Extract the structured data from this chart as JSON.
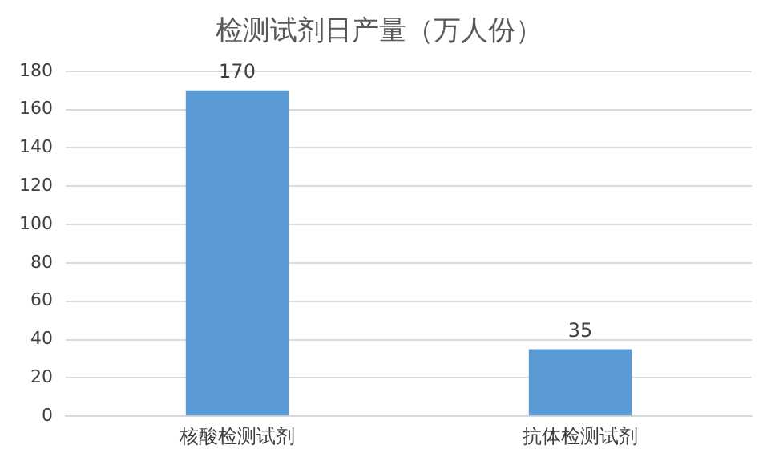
{
  "chart_data": {
    "type": "bar",
    "title": "检测试剂日产量（万人份）",
    "categories": [
      "核酸检测试剂",
      "抗体检测试剂"
    ],
    "values": [
      170,
      35
    ],
    "color": "#5b9bd5",
    "ylim": [
      0,
      180
    ],
    "yticks": [
      0,
      20,
      40,
      60,
      80,
      100,
      120,
      140,
      160,
      180
    ],
    "grid": "y",
    "data_labels": true,
    "legend": false
  }
}
